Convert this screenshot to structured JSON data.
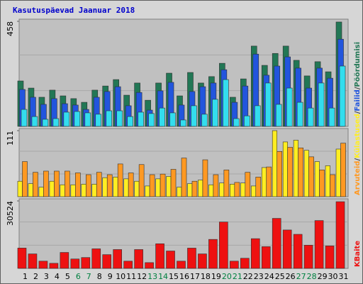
{
  "chart_data": {
    "type": "bar",
    "title": "Kasutuspäevad Jaanuar 2018",
    "categories": [
      "1",
      "2",
      "3",
      "4",
      "5",
      "6",
      "7",
      "8",
      "9",
      "10",
      "11",
      "12",
      "13",
      "14",
      "15",
      "16",
      "17",
      "18",
      "19",
      "20",
      "21",
      "22",
      "23",
      "24",
      "25",
      "26",
      "27",
      "28",
      "29",
      "30",
      "31"
    ],
    "category_colors": [
      "#000000",
      "#000000",
      "#000000",
      "#000000",
      "#000000",
      "#008040",
      "#008040",
      "#000000",
      "#000000",
      "#000000",
      "#000000",
      "#000000",
      "#008040",
      "#008040",
      "#000000",
      "#000000",
      "#000000",
      "#000000",
      "#000000",
      "#008040",
      "#008040",
      "#000000",
      "#000000",
      "#000000",
      "#000000",
      "#000000",
      "#008040",
      "#008040",
      "#000000",
      "#000000",
      "#000000"
    ],
    "legend_separator": "/",
    "panels": [
      {
        "ylim": [
          0,
          458
        ],
        "yticks": [
          458
        ],
        "series": [
          {
            "name": "Pöördumisi",
            "color": "#227755",
            "values": [
              198,
              167,
              127,
              158,
              133,
              121,
              105,
              158,
              176,
              204,
              136,
              189,
              114,
              189,
              232,
              133,
              235,
              189,
              217,
              275,
              127,
              207,
              350,
              266,
              318,
              350,
              288,
              220,
              282,
              238,
              455
            ]
          },
          {
            "name": "Failid",
            "color": "#2255dd",
            "values": [
              161,
              127,
              96,
              121,
              99,
              93,
              74,
              127,
              152,
              173,
              90,
              148,
              71,
              155,
              192,
              93,
              152,
              173,
              189,
              247,
              105,
              176,
              315,
              223,
              263,
              303,
              254,
              167,
              254,
              210,
              380
            ]
          },
          {
            "color": "#33ddee",
            "values": [
              74,
              43,
              31,
              34,
              62,
              65,
              59,
              53,
              68,
              68,
              43,
              62,
              56,
              80,
              59,
              28,
              90,
              53,
              118,
              204,
              34,
              46,
              90,
              189,
              96,
              167,
              105,
              80,
              189,
              80,
              263
            ]
          }
        ]
      },
      {
        "ylim": [
          0,
          111
        ],
        "yticks": [
          111
        ],
        "series": [
          {
            "name": "Külastused",
            "color": "#ffee22",
            "values": [
              26,
              22,
              16,
              26,
              20,
              20,
              21,
              21,
              32,
              33,
              30,
              26,
              18,
              30,
              34,
              16,
              22,
              28,
              20,
              23,
              21,
              23,
              18,
              49,
              111,
              92,
              95,
              78,
              59,
              52,
              80
            ]
          },
          {
            "name": "Arvuteid",
            "color": "#ff9922",
            "values": [
              59,
              41,
              43,
              43,
              43,
              40,
              37,
              41,
              37,
              55,
              40,
              54,
              37,
              38,
              46,
              65,
              26,
              62,
              37,
              45,
              24,
              41,
              33,
              50,
              76,
              83,
              82,
              67,
              45,
              37,
              90
            ]
          }
        ]
      },
      {
        "ylim": [
          0,
          30524
        ],
        "yticks": [
          30524
        ],
        "series": [
          {
            "name": "KBaite",
            "color": "#ee1111",
            "values": [
              9200,
              6560,
              3280,
              2300,
              7220,
              4260,
              4920,
              8860,
              6230,
              8530,
              3280,
              8530,
              2620,
              11150,
              7870,
              3280,
              9180,
              6560,
              13120,
              20990,
              3280,
              4590,
              13450,
              9840,
              22630,
              17380,
              15420,
              10500,
              21650,
              10170,
              30180
            ]
          }
        ]
      }
    ]
  }
}
